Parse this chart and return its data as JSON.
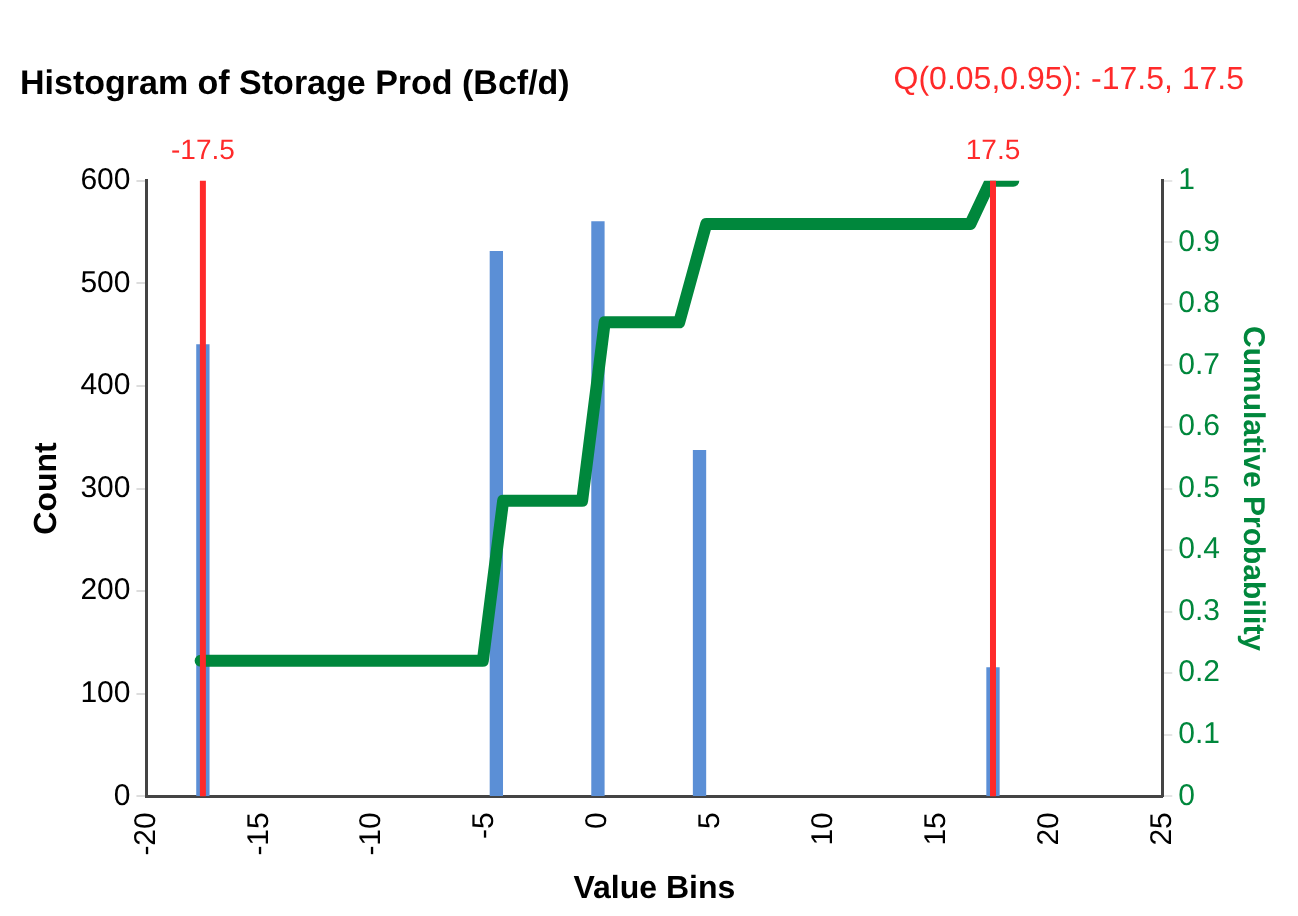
{
  "chart_data": {
    "type": "bar",
    "title": "Histogram of Storage Prod (Bcf/d)",
    "xlabel": "Value Bins",
    "ylabel": "Count",
    "y2label": "Cumulative Probability",
    "annotations": [
      "Q(0.05,0.95): -17.5, 17.5"
    ],
    "xlim": [
      -20,
      25
    ],
    "xticks": [
      -20,
      -15,
      -10,
      -5,
      0,
      5,
      10,
      15,
      20,
      25
    ],
    "ylim": [
      0,
      600
    ],
    "yticks": [
      0,
      100,
      200,
      300,
      400,
      500,
      600
    ],
    "y2lim": [
      0,
      1
    ],
    "y2ticks": [
      0,
      0.1,
      0.2,
      0.3,
      0.4,
      0.5,
      0.6,
      0.7,
      0.8,
      0.9,
      1
    ],
    "series": [
      {
        "color": "#5b8fd6",
        "x": [
          -17.5,
          -4.5,
          0,
          4.5,
          17.5
        ],
        "values": [
          440,
          531,
          560,
          337,
          125
        ]
      },
      {
        "type": "line",
        "axis": "y2",
        "color": "#00873c",
        "x": [
          -17.6,
          -5.1,
          -4.2,
          -0.7,
          0.3,
          3.6,
          4.8,
          16.5,
          17.4,
          18.4
        ],
        "values": [
          0.22,
          0.22,
          0.48,
          0.48,
          0.77,
          0.77,
          0.93,
          0.93,
          1,
          1
        ]
      }
    ],
    "ref_lines": [
      {
        "axis": "x",
        "value": -17.5,
        "label": "-17.5",
        "color": "#ff2a2a"
      },
      {
        "axis": "x",
        "value": 17.5,
        "label": "17.5",
        "color": "#ff2a2a"
      }
    ],
    "grid": false,
    "legend": false,
    "marker": "none",
    "line_style": "solid"
  }
}
